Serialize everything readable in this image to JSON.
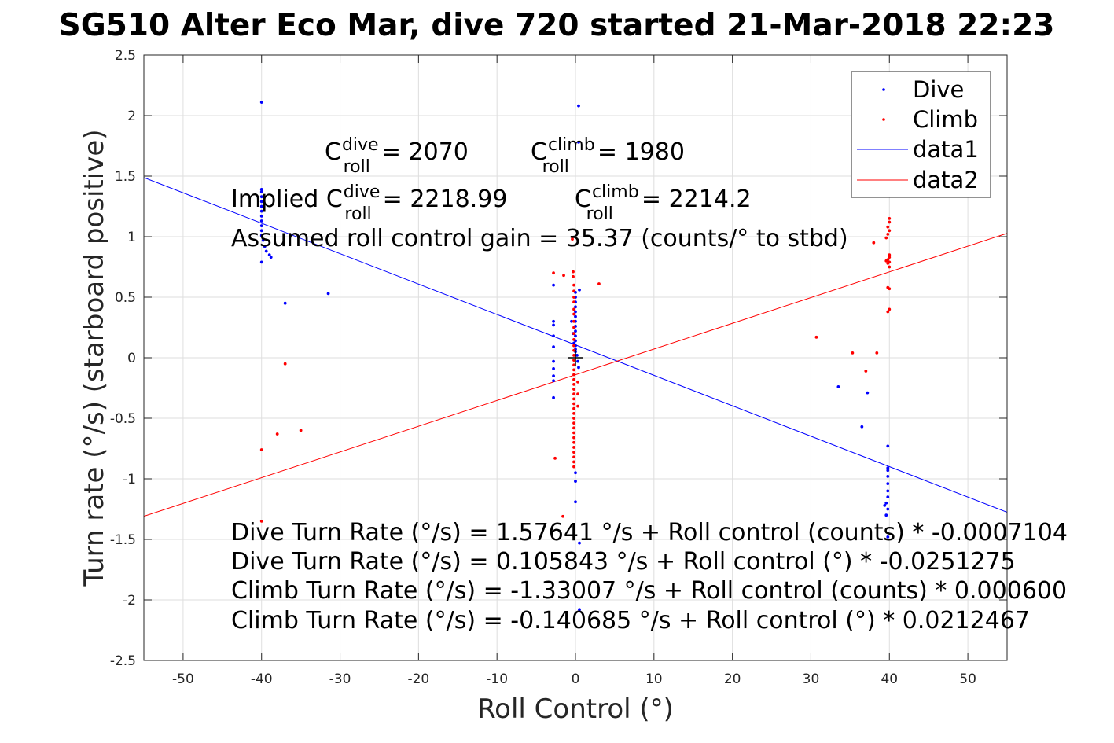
{
  "chart_data": {
    "type": "scatter",
    "title": "SG510 Alter Eco Mar, dive 720 started 21-Mar-2018 22:23",
    "xlabel": "Roll Control (°)",
    "ylabel": "Turn rate (°/s) (starboard positive)",
    "xlim": [
      -55,
      55
    ],
    "ylim": [
      -2.5,
      2.5
    ],
    "xticks": [
      -50,
      -40,
      -30,
      -20,
      -10,
      0,
      10,
      20,
      30,
      40,
      50
    ],
    "yticks": [
      -2.5,
      -2,
      -1.5,
      -1,
      -0.5,
      0,
      0.5,
      1,
      1.5,
      2,
      2.5
    ],
    "xtick_labels": [
      "-50",
      "-40",
      "-30",
      "-20",
      "-10",
      "0",
      "10",
      "20",
      "30",
      "40",
      "50"
    ],
    "ytick_labels": [
      "-2.5",
      "-2",
      "-1.5",
      "-1",
      "-0.5",
      "0",
      "0.5",
      "1",
      "1.5",
      "2",
      "2.5"
    ],
    "grid": true,
    "legend_position": "top-right",
    "legend": [
      "Dive",
      "Climb",
      "data1",
      "data2"
    ],
    "series": [
      {
        "name": "Dive",
        "kind": "points",
        "color": "#0000ff",
        "points": [
          [
            -40,
            2.11
          ],
          [
            -40,
            1.39
          ],
          [
            -40,
            1.37
          ],
          [
            -40,
            1.33
          ],
          [
            -40,
            1.29
          ],
          [
            -40,
            1.25
          ],
          [
            -40,
            1.21
          ],
          [
            -40,
            1.17
          ],
          [
            -40,
            1.13
          ],
          [
            -40,
            1.09
          ],
          [
            -40,
            1.05
          ],
          [
            -40,
            1.01
          ],
          [
            -39.8,
            0.97
          ],
          [
            -39.6,
            0.92
          ],
          [
            -39.4,
            0.88
          ],
          [
            -39,
            0.85
          ],
          [
            -38.8,
            0.83
          ],
          [
            -40,
            0.79
          ],
          [
            -37,
            0.45
          ],
          [
            -31.5,
            0.53
          ],
          [
            -2.8,
            0.6
          ],
          [
            -2.8,
            0.3
          ],
          [
            -2.8,
            0.27
          ],
          [
            -2.8,
            0.18
          ],
          [
            -2.8,
            0.09
          ],
          [
            -2.8,
            -0.03
          ],
          [
            -2.8,
            -0.09
          ],
          [
            -2.8,
            -0.15
          ],
          [
            -2.8,
            -0.19
          ],
          [
            -2.8,
            -0.33
          ],
          [
            -0.5,
            0.3
          ],
          [
            -0.3,
            0.2
          ],
          [
            -0.2,
            0.12
          ],
          [
            0,
            0.54
          ],
          [
            0,
            0.5
          ],
          [
            0,
            0.46
          ],
          [
            0,
            0.42
          ],
          [
            0,
            0.38
          ],
          [
            0,
            0.34
          ],
          [
            0,
            0.3
          ],
          [
            0,
            0.26
          ],
          [
            0,
            0.22
          ],
          [
            0,
            0.18
          ],
          [
            0,
            0.14
          ],
          [
            0,
            0.1
          ],
          [
            0,
            0.07
          ],
          [
            0,
            0.05
          ],
          [
            0.2,
            0.02
          ],
          [
            0.5,
            0.56
          ],
          [
            0.3,
            -0.03
          ],
          [
            0.4,
            -0.08
          ],
          [
            0,
            -0.95
          ],
          [
            0,
            -1.02
          ],
          [
            0,
            -1.19
          ],
          [
            0.4,
            2.08
          ],
          [
            0.4,
            1.78
          ],
          [
            0.5,
            -1.53
          ],
          [
            0.5,
            -2.08
          ],
          [
            33.5,
            -0.24
          ],
          [
            36.5,
            -0.57
          ],
          [
            37.2,
            -0.29
          ],
          [
            39.8,
            -0.73
          ],
          [
            39.8,
            -0.91
          ],
          [
            39.8,
            -0.93
          ],
          [
            39.8,
            -0.98
          ],
          [
            39.8,
            -1.04
          ],
          [
            39.8,
            -1.1
          ],
          [
            39.8,
            -1.15
          ],
          [
            39.6,
            -1.2
          ],
          [
            39.4,
            -1.22
          ],
          [
            39.8,
            -1.25
          ],
          [
            39.6,
            -1.3
          ],
          [
            39.8,
            -1.48
          ]
        ]
      },
      {
        "name": "Climb",
        "kind": "points",
        "color": "#ff0000",
        "points": [
          [
            -40,
            -0.76
          ],
          [
            -40,
            -1.35
          ],
          [
            -38,
            -0.63
          ],
          [
            -37,
            -0.05
          ],
          [
            -35,
            -0.6
          ],
          [
            -2.8,
            0.7
          ],
          [
            -2.6,
            -0.83
          ],
          [
            -1.5,
            0.68
          ],
          [
            -1.6,
            -1.31
          ],
          [
            3,
            0.61
          ],
          [
            -0.4,
            0.98
          ],
          [
            -0.3,
            0.71
          ],
          [
            -0.3,
            0.67
          ],
          [
            -0.2,
            0.6
          ],
          [
            -0.2,
            0.55
          ],
          [
            -0.2,
            0.5
          ],
          [
            -0.2,
            0.46
          ],
          [
            -0.2,
            0.4
          ],
          [
            -0.2,
            0.36
          ],
          [
            -0.2,
            0.3
          ],
          [
            -0.2,
            0.25
          ],
          [
            -0.2,
            0.2
          ],
          [
            -0.2,
            0.15
          ],
          [
            -0.2,
            0.1
          ],
          [
            -0.2,
            0.06
          ],
          [
            -0.2,
            0.02
          ],
          [
            -0.2,
            -0.02
          ],
          [
            -0.2,
            -0.06
          ],
          [
            -0.2,
            -0.1
          ],
          [
            -0.2,
            -0.14
          ],
          [
            -0.2,
            -0.18
          ],
          [
            -0.2,
            -0.22
          ],
          [
            -0.2,
            -0.26
          ],
          [
            -0.2,
            -0.3
          ],
          [
            -0.2,
            -0.34
          ],
          [
            -0.2,
            -0.38
          ],
          [
            -0.2,
            -0.42
          ],
          [
            -0.2,
            -0.46
          ],
          [
            -0.2,
            -0.5
          ],
          [
            -0.2,
            -0.54
          ],
          [
            -0.2,
            -0.58
          ],
          [
            -0.2,
            -0.62
          ],
          [
            -0.2,
            -0.66
          ],
          [
            -0.2,
            -0.7
          ],
          [
            -0.2,
            -0.74
          ],
          [
            -0.2,
            -0.78
          ],
          [
            -0.2,
            -0.82
          ],
          [
            -0.2,
            -0.86
          ],
          [
            -0.2,
            -0.9
          ],
          [
            0.3,
            -0.4
          ],
          [
            0.3,
            -0.3
          ],
          [
            0.3,
            -0.2
          ],
          [
            30.7,
            0.17
          ],
          [
            35.3,
            0.04
          ],
          [
            37,
            -0.11
          ],
          [
            38.4,
            0.04
          ],
          [
            38,
            0.95
          ],
          [
            40,
            1.15
          ],
          [
            40,
            1.12
          ],
          [
            39.8,
            1.08
          ],
          [
            40,
            1.05
          ],
          [
            39.8,
            1.02
          ],
          [
            39.6,
            0.99
          ],
          [
            40,
            0.85
          ],
          [
            40,
            0.83
          ],
          [
            39.8,
            0.81
          ],
          [
            39.6,
            0.8
          ],
          [
            40,
            0.79
          ],
          [
            39.8,
            0.78
          ],
          [
            40,
            0.75
          ],
          [
            39.8,
            0.58
          ],
          [
            40,
            0.57
          ],
          [
            40,
            0.4
          ],
          [
            39.8,
            0.38
          ]
        ]
      },
      {
        "name": "data1",
        "kind": "line",
        "color": "#0000ff",
        "intercept": 0.105843,
        "slope": -0.0251275
      },
      {
        "name": "data2",
        "kind": "line",
        "color": "#ff0000",
        "intercept": -0.140685,
        "slope": 0.0212467
      }
    ],
    "marker": {
      "type": "cross",
      "x": 0,
      "y": 0
    },
    "annotations": {
      "c_dive_prefix": "C",
      "c_dive_sup": "dive",
      "c_dive_sub": "roll",
      "c_dive_value": "= 2070",
      "c_climb_prefix": "C",
      "c_climb_sup": "climb",
      "c_climb_sub": "roll",
      "c_climb_value": "= 1980",
      "implied_prefix": "Implied C",
      "implied_dive_sup": "dive",
      "implied_dive_sub": "roll",
      "implied_dive_value": "= 2218.99",
      "implied_climb_prefix": "C",
      "implied_climb_sup": "climb",
      "implied_climb_sub": "roll",
      "implied_climb_value": "= 2214.2",
      "gain": "Assumed roll control gain = 35.37 (counts/° to stbd)",
      "eq1": "Dive Turn Rate (°/s) = 1.57641 °/s + Roll control (counts) * -0.0007104",
      "eq2": "Dive Turn Rate (°/s) = 0.105843 °/s + Roll control (°) * -0.0251275",
      "eq3": "Climb Turn Rate (°/s) = -1.33007 °/s + Roll control (counts) * 0.000600",
      "eq4": "Climb Turn Rate (°/s) = -0.140685 °/s + Roll control (°) * 0.0212467"
    }
  }
}
